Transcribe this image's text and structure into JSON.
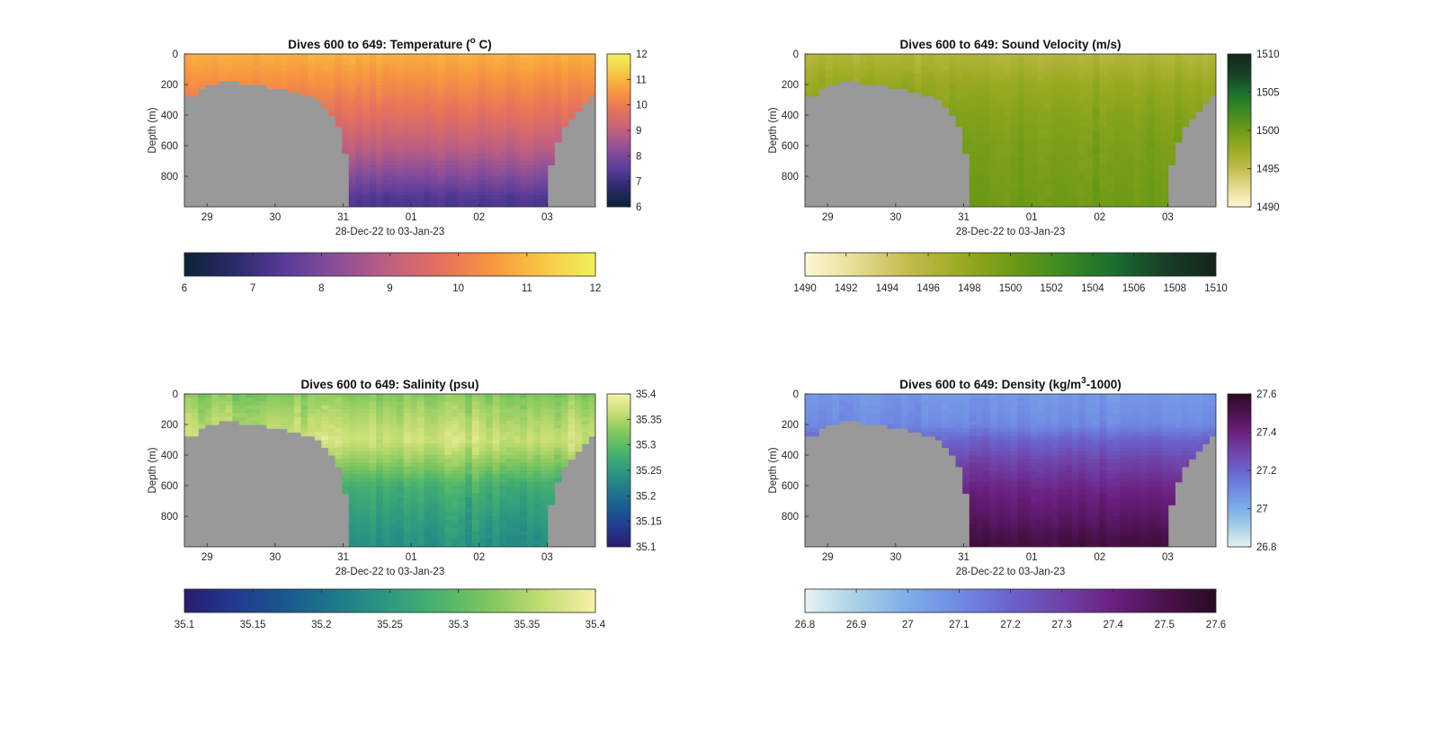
{
  "figure": {
    "background": "#ffffff",
    "land_color": "#999999"
  },
  "chart_data": [
    {
      "type": "heatmap",
      "title": {
        "main": "Dives 600 to 649: Temperature (",
        "sup": "o",
        "tail": " C)"
      },
      "xlabel": "28-Dec-22 to 03-Jan-23",
      "ylabel": "Depth (m)",
      "x_range": [
        "2022-12-28T16:00",
        "2023-01-03T17:00"
      ],
      "x_ticks": [
        {
          "date": "2022-12-29",
          "label": "29"
        },
        {
          "date": "2022-12-30",
          "label": "30"
        },
        {
          "date": "2022-12-31",
          "label": "31"
        },
        {
          "date": "2023-01-01",
          "label": "01"
        },
        {
          "date": "2023-01-02",
          "label": "02"
        },
        {
          "date": "2023-01-03",
          "label": "03"
        }
      ],
      "ylim": [
        0,
        1000
      ],
      "y_ticks": [
        "0",
        "200",
        "400",
        "600",
        "800"
      ],
      "y_reversed": true,
      "color_range": [
        6,
        12
      ],
      "colorbar_ticks": [
        "6",
        "7",
        "8",
        "9",
        "10",
        "11",
        "12"
      ],
      "horizontal_colorbar_ticks": [
        "6",
        "7",
        "8",
        "9",
        "10",
        "11",
        "12"
      ],
      "colormap": [
        "#0c2235",
        "#2b2a6b",
        "#5a3c9a",
        "#8c4f98",
        "#c06080",
        "#e5715d",
        "#f8963f",
        "#f9c744",
        "#eff25a"
      ],
      "profile": [
        {
          "depth_top_m": 0,
          "value": 10.9
        },
        {
          "depth_top_m": 200,
          "value": 10.3
        },
        {
          "depth_top_m": 400,
          "value": 9.7
        },
        {
          "depth_top_m": 600,
          "value": 9.0
        },
        {
          "depth_top_m": 800,
          "value": 8.1
        },
        {
          "depth_top_m": 950,
          "value": 7.3
        }
      ],
      "column_variation": 0.18
    },
    {
      "type": "heatmap",
      "title": {
        "main": "Dives 600 to 649: Sound Velocity (m/s)",
        "sup": "",
        "tail": ""
      },
      "xlabel": "28-Dec-22 to 03-Jan-23",
      "ylabel": "Depth (m)",
      "x_range": [
        "2022-12-28T16:00",
        "2023-01-03T17:00"
      ],
      "x_ticks": [
        {
          "date": "2022-12-29",
          "label": "29"
        },
        {
          "date": "2022-12-30",
          "label": "30"
        },
        {
          "date": "2022-12-31",
          "label": "31"
        },
        {
          "date": "2023-01-01",
          "label": "01"
        },
        {
          "date": "2023-01-02",
          "label": "02"
        },
        {
          "date": "2023-01-03",
          "label": "03"
        }
      ],
      "ylim": [
        0,
        1000
      ],
      "y_ticks": [
        "0",
        "200",
        "400",
        "600",
        "800"
      ],
      "y_reversed": true,
      "color_range": [
        1490,
        1510
      ],
      "colorbar_ticks": [
        "1490",
        "1495",
        "1500",
        "1505",
        "1510"
      ],
      "horizontal_colorbar_ticks": [
        "1490",
        "1492",
        "1494",
        "1496",
        "1498",
        "1500",
        "1502",
        "1504",
        "1506",
        "1508",
        "1510"
      ],
      "colormap": [
        "#fdf7d4",
        "#e6dc93",
        "#c2bc4d",
        "#9cab22",
        "#6e9a16",
        "#3d8a22",
        "#1a6e2e",
        "#173f27",
        "#15241a"
      ],
      "profile": [
        {
          "depth_top_m": 0,
          "value": 1496.0
        },
        {
          "depth_top_m": 200,
          "value": 1497.8
        },
        {
          "depth_top_m": 400,
          "value": 1498.8
        },
        {
          "depth_top_m": 600,
          "value": 1499.4
        },
        {
          "depth_top_m": 800,
          "value": 1499.7
        },
        {
          "depth_top_m": 950,
          "value": 1500.0
        }
      ],
      "column_variation": 0.6
    },
    {
      "type": "heatmap",
      "title": {
        "main": "Dives 600 to 649: Salinity (psu)",
        "sup": "",
        "tail": ""
      },
      "xlabel": "28-Dec-22 to 03-Jan-23",
      "ylabel": "Depth (m)",
      "x_range": [
        "2022-12-28T16:00",
        "2023-01-03T17:00"
      ],
      "x_ticks": [
        {
          "date": "2022-12-29",
          "label": "29"
        },
        {
          "date": "2022-12-30",
          "label": "30"
        },
        {
          "date": "2022-12-31",
          "label": "31"
        },
        {
          "date": "2023-01-01",
          "label": "01"
        },
        {
          "date": "2023-01-02",
          "label": "02"
        },
        {
          "date": "2023-01-03",
          "label": "03"
        }
      ],
      "ylim": [
        0,
        1000
      ],
      "y_ticks": [
        "0",
        "200",
        "400",
        "600",
        "800"
      ],
      "y_reversed": true,
      "color_range": [
        35.1,
        35.4
      ],
      "colorbar_ticks": [
        "35.1",
        "35.15",
        "35.2",
        "35.25",
        "35.3",
        "35.35",
        "35.4"
      ],
      "horizontal_colorbar_ticks": [
        "35.1",
        "35.15",
        "35.2",
        "35.25",
        "35.3",
        "35.35",
        "35.4"
      ],
      "colormap": [
        "#2a1b70",
        "#213a8f",
        "#19598f",
        "#1f7a8a",
        "#2e9a80",
        "#4cb46c",
        "#84c85e",
        "#c5dd73",
        "#f6f2a6"
      ],
      "profile": [
        {
          "depth_top_m": 0,
          "value": 35.325
        },
        {
          "depth_top_m": 150,
          "value": 35.35
        },
        {
          "depth_top_m": 300,
          "value": 35.37
        },
        {
          "depth_top_m": 450,
          "value": 35.33
        },
        {
          "depth_top_m": 600,
          "value": 35.28
        },
        {
          "depth_top_m": 800,
          "value": 35.255
        },
        {
          "depth_top_m": 950,
          "value": 35.24
        }
      ],
      "column_variation": 0.022
    },
    {
      "type": "heatmap",
      "title": {
        "main": "Dives 600 to 649: Density (kg/m",
        "sup": "3",
        "tail": "-1000)"
      },
      "xlabel": "28-Dec-22 to 03-Jan-23",
      "ylabel": "Depth (m)",
      "x_range": [
        "2022-12-28T16:00",
        "2023-01-03T17:00"
      ],
      "x_ticks": [
        {
          "date": "2022-12-29",
          "label": "29"
        },
        {
          "date": "2022-12-30",
          "label": "30"
        },
        {
          "date": "2022-12-31",
          "label": "31"
        },
        {
          "date": "2023-01-01",
          "label": "01"
        },
        {
          "date": "2023-01-02",
          "label": "02"
        },
        {
          "date": "2023-01-03",
          "label": "03"
        }
      ],
      "ylim": [
        0,
        1000
      ],
      "y_ticks": [
        "0",
        "200",
        "400",
        "600",
        "800"
      ],
      "y_reversed": true,
      "color_range": [
        26.8,
        27.6
      ],
      "colorbar_ticks": [
        "26.8",
        "27",
        "27.2",
        "27.4",
        "27.6"
      ],
      "horizontal_colorbar_ticks": [
        "26.8",
        "26.9",
        "27",
        "27.1",
        "27.2",
        "27.3",
        "27.4",
        "27.5",
        "27.6"
      ],
      "colormap": [
        "#e8f2f4",
        "#a8d0e6",
        "#7eaee8",
        "#6f8ae2",
        "#6a63cc",
        "#7042a8",
        "#6a2080",
        "#4c124e",
        "#2a0a22"
      ],
      "profile": [
        {
          "depth_top_m": 0,
          "value": 27.06
        },
        {
          "depth_top_m": 200,
          "value": 27.1
        },
        {
          "depth_top_m": 300,
          "value": 27.2
        },
        {
          "depth_top_m": 450,
          "value": 27.3
        },
        {
          "depth_top_m": 650,
          "value": 27.4
        },
        {
          "depth_top_m": 850,
          "value": 27.47
        },
        {
          "depth_top_m": 950,
          "value": 27.52
        }
      ],
      "column_variation": 0.03
    }
  ]
}
